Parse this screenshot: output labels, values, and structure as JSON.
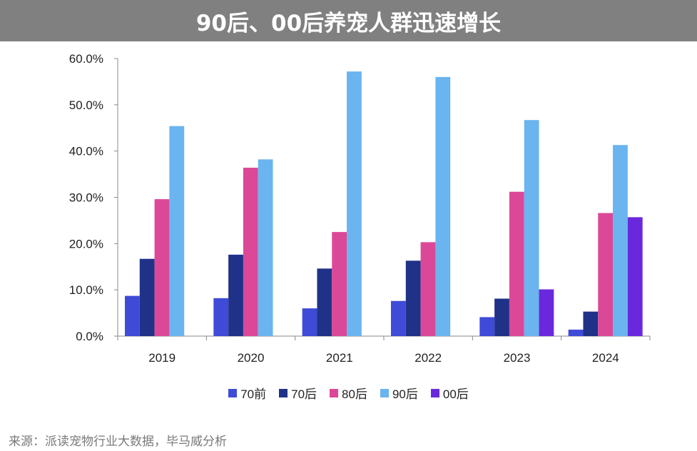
{
  "title": "90后、00后养宠人群迅速增长",
  "source": "来源：派读宠物行业大数据，毕马威分析",
  "chart_data": {
    "type": "bar",
    "title": "90后、00后养宠人群迅速增长",
    "categories": [
      "2019",
      "2020",
      "2021",
      "2022",
      "2023",
      "2024"
    ],
    "ylim": [
      0,
      60
    ],
    "yticks": [
      "0.0%",
      "10.0%",
      "20.0%",
      "30.0%",
      "40.0%",
      "50.0%",
      "60.0%"
    ],
    "grid": false,
    "legend_position": "bottom",
    "series": [
      {
        "name": "70前",
        "color": "#3f4bd6",
        "values": [
          8.7,
          8.2,
          6.0,
          7.6,
          4.1,
          1.4
        ]
      },
      {
        "name": "70后",
        "color": "#1f3288",
        "values": [
          16.7,
          17.6,
          14.6,
          16.3,
          8.1,
          5.3
        ]
      },
      {
        "name": "80后",
        "color": "#dc4898",
        "values": [
          29.6,
          36.4,
          22.5,
          20.3,
          31.2,
          26.6
        ]
      },
      {
        "name": "90后",
        "color": "#6ab4ef",
        "values": [
          45.4,
          38.2,
          57.2,
          56.0,
          46.7,
          41.3
        ]
      },
      {
        "name": "00后",
        "color": "#6a28dc",
        "values": [
          null,
          null,
          null,
          null,
          10.1,
          25.7
        ]
      }
    ]
  }
}
